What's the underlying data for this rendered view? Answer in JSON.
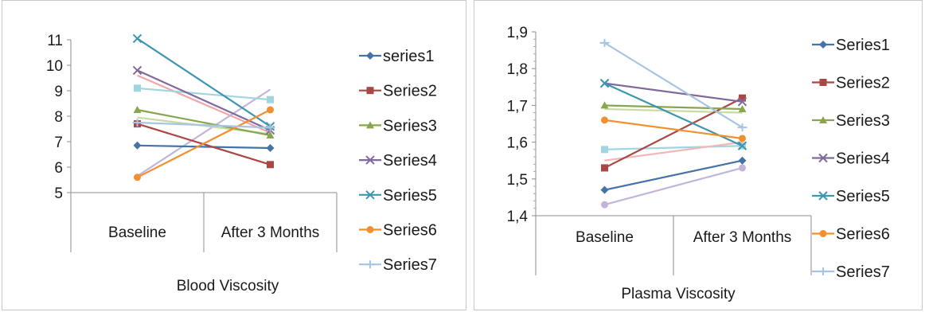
{
  "chart_data": [
    {
      "type": "line",
      "title": "",
      "xlabel": "Blood Viscosity",
      "ylabel": "",
      "ylim": [
        5,
        11
      ],
      "y_ticks": [
        "5",
        "6",
        "7",
        "8",
        "9",
        "10",
        "11"
      ],
      "categories": [
        "Baseline",
        "After 3 Months"
      ],
      "grid": "none",
      "legend": "right",
      "series": [
        {
          "name": "series1",
          "marker": "diamond",
          "color": "#4572a7",
          "values": [
            6.85,
            6.75
          ]
        },
        {
          "name": "Series2",
          "marker": "square",
          "color": "#aa4643",
          "values": [
            7.7,
            6.1
          ]
        },
        {
          "name": "Series3",
          "marker": "triangle",
          "color": "#89a54e",
          "values": [
            8.25,
            7.25
          ]
        },
        {
          "name": "Series4",
          "marker": "x",
          "color": "#80699b",
          "values": [
            9.8,
            7.45
          ]
        },
        {
          "name": "Series5",
          "marker": "x",
          "color": "#3d96ae",
          "values": [
            11.05,
            7.6
          ]
        },
        {
          "name": "Series6",
          "marker": "circle",
          "color": "#f28f2f",
          "values": [
            5.6,
            8.25
          ]
        },
        {
          "name": "Series7",
          "marker": "plus",
          "color": "#a6c4e3",
          "values": [
            7.75,
            7.55
          ]
        },
        {
          "name": "",
          "marker": "none",
          "color": "#f2a6a6",
          "values": [
            9.6,
            7.35
          ]
        },
        {
          "name": "",
          "marker": "none",
          "color": "#c3b5d9",
          "values": [
            5.65,
            9.05
          ]
        },
        {
          "name": "",
          "marker": "square",
          "color": "#9fd6e0",
          "values": [
            9.1,
            8.65
          ]
        },
        {
          "name": "",
          "marker": "none",
          "color": "#c7dca0",
          "values": [
            7.95,
            7.3
          ]
        }
      ]
    },
    {
      "type": "line",
      "title": "",
      "xlabel": "Plasma Viscosity",
      "ylabel": "",
      "ylim": [
        1.4,
        1.9
      ],
      "y_ticks": [
        "1,4",
        "1,5",
        "1,6",
        "1,7",
        "1,8",
        "1,9"
      ],
      "categories": [
        "Baseline",
        "After 3 Months"
      ],
      "grid": "none",
      "legend": "right",
      "series": [
        {
          "name": "Series1",
          "marker": "diamond",
          "color": "#4572a7",
          "values": [
            1.47,
            1.55
          ]
        },
        {
          "name": "Series2",
          "marker": "square",
          "color": "#aa4643",
          "values": [
            1.53,
            1.72
          ]
        },
        {
          "name": "Series3",
          "marker": "triangle",
          "color": "#89a54e",
          "values": [
            1.7,
            1.69
          ]
        },
        {
          "name": "Series4",
          "marker": "x",
          "color": "#80699b",
          "values": [
            1.76,
            1.71
          ]
        },
        {
          "name": "Series5",
          "marker": "x",
          "color": "#3d96ae",
          "values": [
            1.76,
            1.59
          ]
        },
        {
          "name": "Series6",
          "marker": "circle",
          "color": "#f28f2f",
          "values": [
            1.66,
            1.61
          ]
        },
        {
          "name": "Series7",
          "marker": "plus",
          "color": "#a6c4e3",
          "values": [
            1.87,
            1.64
          ]
        },
        {
          "name": "",
          "marker": "circle",
          "color": "#c3b5d9",
          "values": [
            1.43,
            1.53
          ]
        },
        {
          "name": "",
          "marker": "square",
          "color": "#9fd6e0",
          "values": [
            1.58,
            1.59
          ]
        },
        {
          "name": "",
          "marker": "none",
          "color": "#f2b8b8",
          "values": [
            1.55,
            1.6
          ]
        },
        {
          "name": "",
          "marker": "none",
          "color": "#c7dca0",
          "values": [
            1.69,
            1.68
          ]
        }
      ]
    }
  ]
}
